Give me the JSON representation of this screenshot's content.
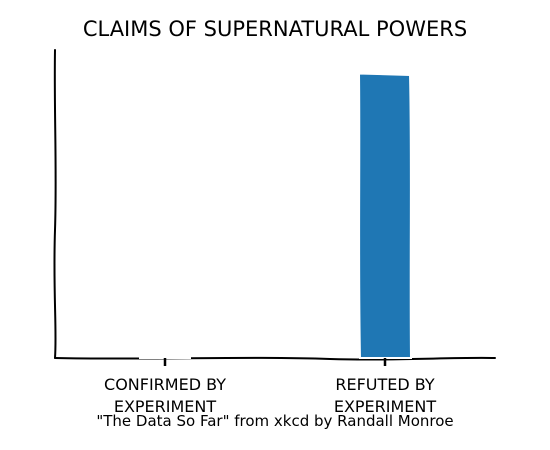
{
  "chart_data": {
    "type": "bar",
    "title": "CLAIMS OF SUPERNATURAL POWERS",
    "categories": [
      "CONFIRMED BY\nEXPERIMENT",
      "REFUTED BY\nEXPERIMENT"
    ],
    "values": [
      0,
      100
    ],
    "ylim": [
      0,
      110
    ],
    "xlabel": "",
    "ylabel": "",
    "grid": false,
    "y_ticks_visible": false,
    "bar_color": "#1f77b4",
    "caption": "\"The Data So Far\" from xkcd by Randall Monroe"
  }
}
